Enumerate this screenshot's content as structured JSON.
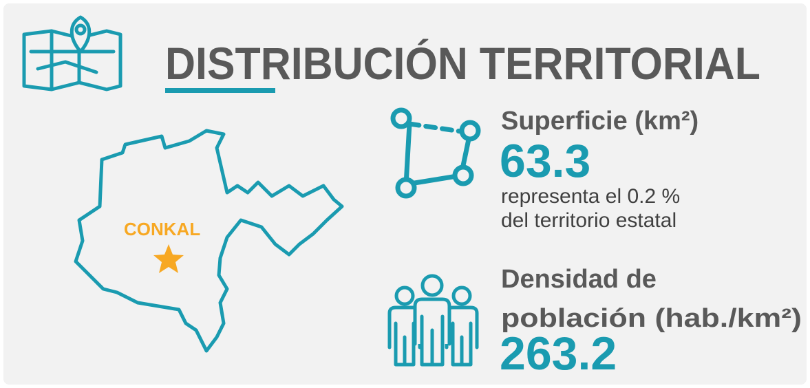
{
  "header": {
    "title": "DISTRIBUCIÓN TERRITORIAL"
  },
  "map": {
    "label": "CONKAL"
  },
  "superficie": {
    "label": "Superficie (km²)",
    "value": 63.3,
    "note": [
      "representa el 0.2 %",
      "del territorio estatal"
    ]
  },
  "densidad": {
    "label": [
      "Densidad de",
      "población (hab./km²)"
    ],
    "value": 263.2
  }
}
